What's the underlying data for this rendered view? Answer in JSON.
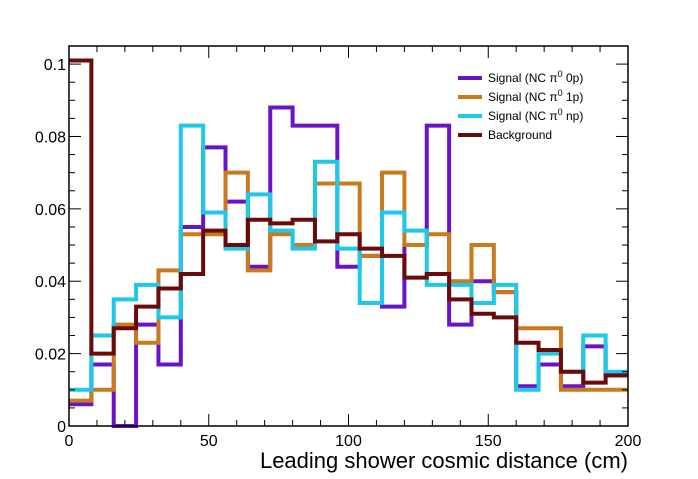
{
  "chart_data": {
    "type": "line",
    "style": "step-histogram",
    "title": "",
    "xlabel": "Leading shower cosmic distance (cm)",
    "ylabel": "",
    "xlim": [
      0,
      200
    ],
    "ylim": [
      0,
      0.105
    ],
    "x_ticks": [
      0,
      50,
      100,
      150,
      200
    ],
    "x_tick_labels": [
      "0",
      "50",
      "100",
      "150",
      "200"
    ],
    "y_ticks": [
      0,
      0.02,
      0.04,
      0.06,
      0.08,
      0.1
    ],
    "y_tick_labels": [
      "0",
      "0.02",
      "0.04",
      "0.06",
      "0.08",
      "0.1"
    ],
    "grid": false,
    "legend_position": "top-right",
    "bin_edges": [
      0,
      8,
      16,
      24,
      32,
      40,
      48,
      56,
      64,
      72,
      80,
      88,
      96,
      104,
      112,
      120,
      128,
      136,
      144,
      152,
      160,
      168,
      176,
      184,
      192,
      200
    ],
    "series": [
      {
        "name": "Signal (NC π⁰ 0p)",
        "legend_main": "Signal (NC π",
        "legend_sup": "0",
        "legend_tail": " 0p)",
        "color": "#6a14c8",
        "values": [
          0.006,
          0.017,
          0.0,
          0.028,
          0.017,
          0.055,
          0.077,
          0.062,
          0.044,
          0.088,
          0.083,
          0.083,
          0.044,
          0.047,
          0.033,
          0.05,
          0.083,
          0.028,
          0.04,
          0.037,
          0.011,
          0.017,
          0.011,
          0.022,
          0.014
        ]
      },
      {
        "name": "Signal (NC π⁰ 1p)",
        "legend_main": "Signal (NC π",
        "legend_sup": "0",
        "legend_tail": " 1p)",
        "color": "#c87a1e",
        "values": [
          0.007,
          0.01,
          0.028,
          0.023,
          0.043,
          0.053,
          0.053,
          0.07,
          0.043,
          0.053,
          0.05,
          0.067,
          0.067,
          0.047,
          0.07,
          0.05,
          0.053,
          0.04,
          0.05,
          0.037,
          0.027,
          0.027,
          0.01,
          0.01,
          0.01
        ]
      },
      {
        "name": "Signal (NC π⁰ np)",
        "legend_main": "Signal (NC π",
        "legend_sup": "0",
        "legend_tail": " np)",
        "color": "#1ec8e6",
        "values": [
          0.01,
          0.025,
          0.035,
          0.039,
          0.03,
          0.083,
          0.059,
          0.049,
          0.064,
          0.054,
          0.049,
          0.073,
          0.049,
          0.034,
          0.059,
          0.054,
          0.039,
          0.039,
          0.034,
          0.039,
          0.01,
          0.02,
          0.015,
          0.025,
          0.015
        ]
      },
      {
        "name": "Background",
        "legend_main": "Background",
        "legend_sup": "",
        "legend_tail": "",
        "color": "#6a0a0a",
        "values": [
          0.101,
          0.02,
          0.027,
          0.033,
          0.038,
          0.042,
          0.054,
          0.05,
          0.057,
          0.056,
          0.057,
          0.051,
          0.053,
          0.049,
          0.047,
          0.041,
          0.042,
          0.035,
          0.031,
          0.03,
          0.023,
          0.021,
          0.015,
          0.012,
          0.014
        ]
      }
    ]
  }
}
